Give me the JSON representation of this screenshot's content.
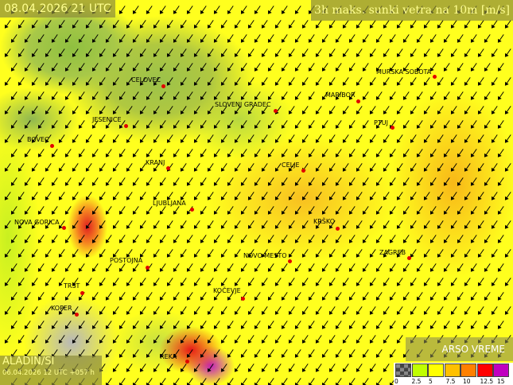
{
  "header": {
    "date": "08.04.2026 21 UTC",
    "product": "3h maks. sunki vetra na 10m [m/s]"
  },
  "model": {
    "name": "ALADIN/SI",
    "run": "06.04.2026 12 UTC +057 h"
  },
  "logo": {
    "text": "ARSO VREME"
  },
  "cities": [
    "CELOVEC",
    "SLOVENJ GRADEC",
    "MARIBOR",
    "MURSKA SOBOTA",
    "PTUJ",
    "JESENICE",
    "BOVEC",
    "KRANJ",
    "CELJE",
    "LJUBLJANA",
    "NOVA GORICA",
    "KRŠKO",
    "POSTOJNA",
    "NOVO MESTO",
    "ZAGREB",
    "TRST",
    "KOČEVJE",
    "KOPER",
    "REKA"
  ],
  "legend": {
    "ticks": [
      "0",
      "2.5",
      "5",
      "7.5",
      "10",
      "12.5",
      "15"
    ],
    "colors": [
      "#555555",
      "#c0ff00",
      "#ffff00",
      "#ffc000",
      "#ff8000",
      "#ff0000",
      "#c000c0"
    ]
  },
  "wind_direction": "southwest"
}
